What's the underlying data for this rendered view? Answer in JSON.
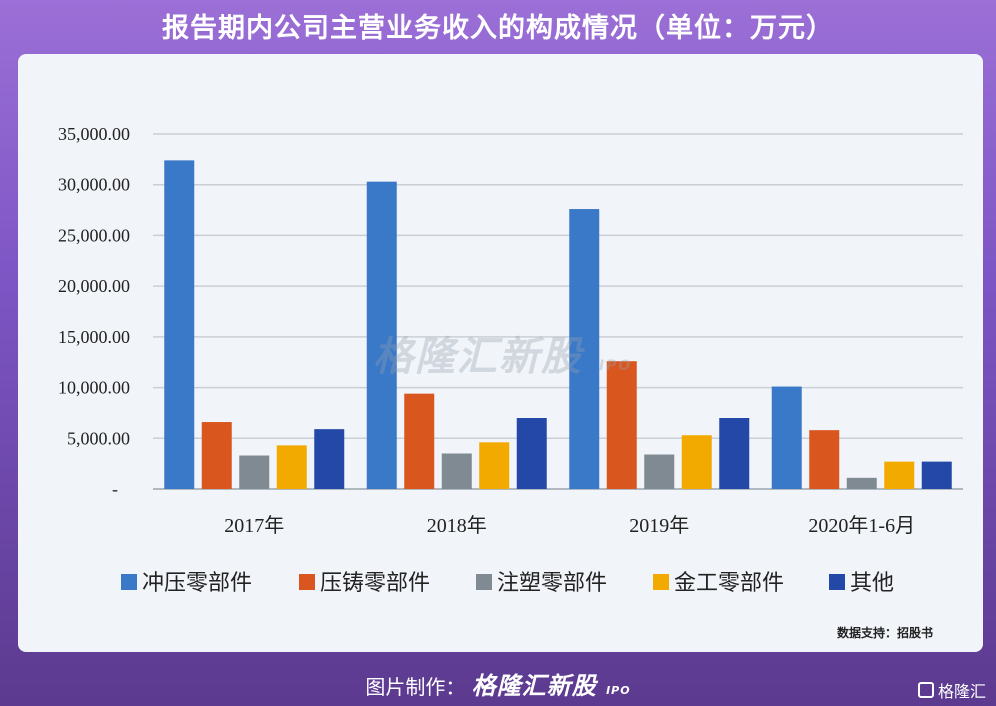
{
  "title": "报告期内公司主营业务收入的构成情况（单位：万元）",
  "watermark": {
    "brand": "格隆汇新股",
    "suffix": "IPO"
  },
  "source_note": "数据支持：招股书",
  "footer": {
    "prefix": "图片制作：",
    "brand": "格隆汇新股",
    "suffix": "IPO"
  },
  "corner_logo": {
    "text": "格隆汇"
  },
  "chart_data": {
    "type": "bar",
    "categories": [
      "2017年",
      "2018年",
      "2019年",
      "2020年1-6月"
    ],
    "series": [
      {
        "name": "冲压零部件",
        "color": "#3a78c8",
        "values": [
          32400,
          30300,
          27600,
          10100
        ]
      },
      {
        "name": "压铸零部件",
        "color": "#d9561e",
        "values": [
          6600,
          9400,
          12600,
          5800
        ]
      },
      {
        "name": "注塑零部件",
        "color": "#7f8a92",
        "values": [
          3300,
          3500,
          3400,
          1100
        ]
      },
      {
        "name": "金工零部件",
        "color": "#f2a900",
        "values": [
          4300,
          4600,
          5300,
          2700
        ]
      },
      {
        "name": "其他",
        "color": "#2448a8",
        "values": [
          5900,
          7000,
          7000,
          2700
        ]
      }
    ],
    "yticks": [
      "-",
      "5,000.00",
      "10,000.00",
      "15,000.00",
      "20,000.00",
      "25,000.00",
      "30,000.00",
      "35,000.00"
    ],
    "ylim": [
      0,
      35000
    ],
    "grid": true,
    "legend": "bottom"
  }
}
